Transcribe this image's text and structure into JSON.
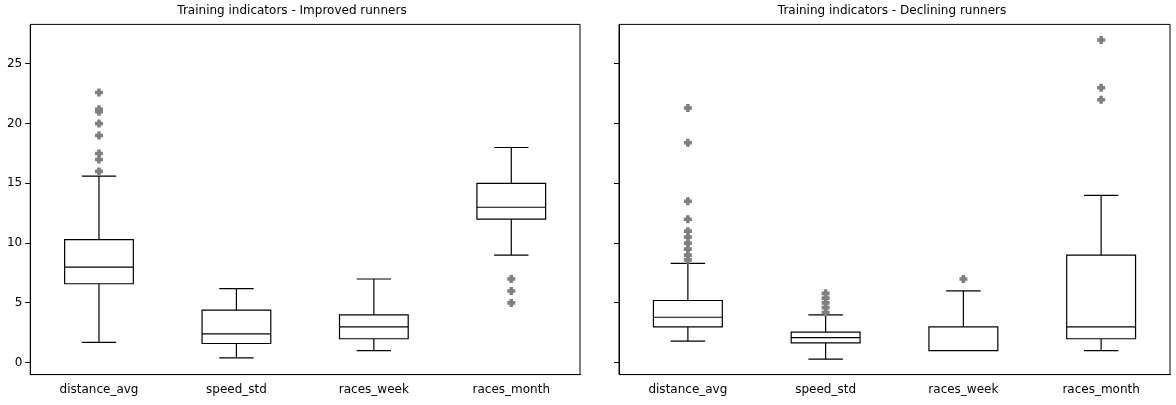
{
  "chart_data": [
    {
      "type": "box",
      "title": "Training indicators - Improved runners",
      "categories": [
        "distance_avg",
        "speed_std",
        "races_week",
        "races_month"
      ],
      "color": "#000000",
      "marker": "cross",
      "grid": false,
      "ylim": [
        -1,
        28.3
      ],
      "yticks": [
        0,
        5,
        10,
        15,
        20,
        25
      ],
      "boxes": [
        {
          "low": 1.7,
          "q1": 6.6,
          "median": 8.0,
          "q3": 10.3,
          "high": 15.6,
          "outliers": [
            16,
            17,
            17.5,
            19,
            20,
            21,
            21.2,
            22.6
          ]
        },
        {
          "low": 0.4,
          "q1": 1.6,
          "median": 2.4,
          "q3": 4.4,
          "high": 6.2
        },
        {
          "low": 1,
          "q1": 2,
          "median": 3,
          "q3": 4,
          "high": 7
        },
        {
          "low": 9,
          "q1": 12,
          "median": 13,
          "q3": 15,
          "high": 18,
          "outliers": [
            5,
            6,
            7
          ]
        }
      ]
    },
    {
      "type": "box",
      "title": "Training indicators - Declining runners",
      "categories": [
        "distance_avg",
        "speed_std",
        "races_week",
        "races_month"
      ],
      "color": "#000000",
      "marker": "cross",
      "grid": false,
      "ylim": [
        -1,
        28.3
      ],
      "yticks": [
        0,
        5,
        10,
        15,
        20,
        25
      ],
      "tick_labels": "x",
      "boxes": [
        {
          "low": 1.8,
          "q1": 3.0,
          "median": 3.8,
          "q3": 5.2,
          "high": 8.3,
          "outliers": [
            8.6,
            9,
            9.5,
            10,
            10.5,
            11,
            12,
            13.5,
            18.4,
            21.3
          ]
        },
        {
          "low": 0.3,
          "q1": 1.65,
          "median": 2.1,
          "q3": 2.55,
          "high": 4.0,
          "outliers": [
            4.2,
            4.6,
            5,
            5.4,
            5.8
          ]
        },
        {
          "low": 1,
          "q1": 1,
          "median": 1,
          "q3": 3,
          "high": 6,
          "outliers": [
            7
          ]
        },
        {
          "low": 1,
          "q1": 2,
          "median": 3,
          "q3": 9,
          "high": 14,
          "outliers": [
            22,
            23,
            27
          ]
        }
      ]
    }
  ]
}
